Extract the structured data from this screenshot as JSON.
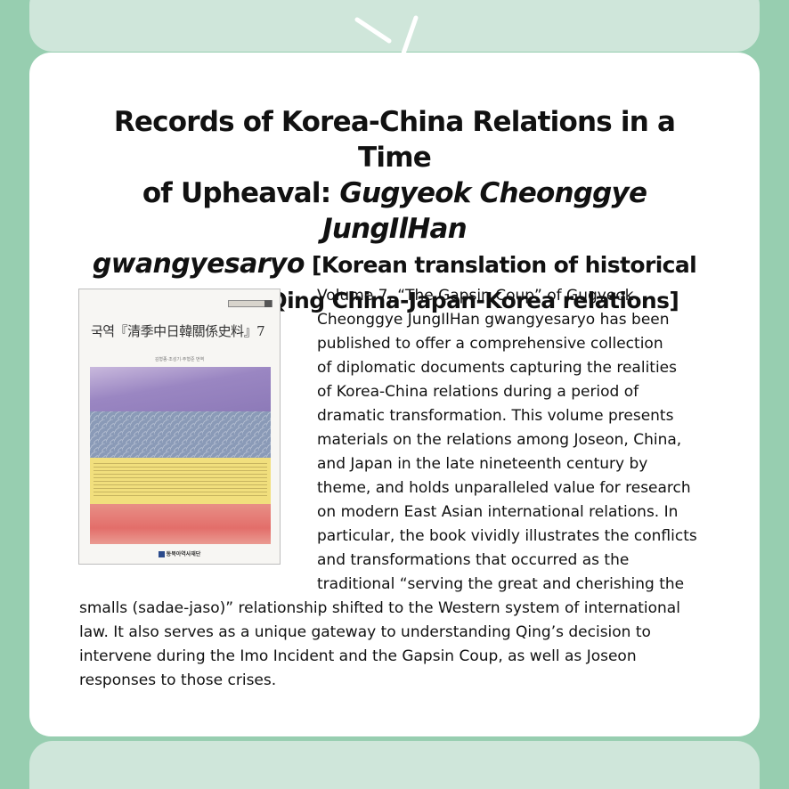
{
  "title": {
    "line1_plain": "Records of Korea-China Relations in a Time",
    "line2_plain": "of Upheaval: ",
    "line2_italic": "Gugyeok Cheonggye JungIlHan",
    "line3_italic": "gwangyesaryo",
    "line3_plain": " [Korean translation of historical",
    "line4_plain": "materials on Qing China-Japan-Korea relations]"
  },
  "cover": {
    "title_text": "국역『清季中日韓關係史料』7",
    "authors": "김형종·조성기·주형준 번역",
    "publisher": "동북아역사재단"
  },
  "body": {
    "lines": [
      "Volume 7, “The Gapsin Coup” of Gugyeok",
      "Cheonggye JungIlHan gwangyesaryo has been",
      "published to offer a comprehensive collection",
      "of diplomatic documents capturing the realities",
      "of Korea-China relations during a period of",
      "dramatic transformation. This volume presents",
      "materials on the relations among Joseon, China,",
      "and Japan in the late nineteenth century by",
      "theme, and holds unparalleled value for research",
      "on modern East Asian international relations. In",
      "particular, the book vividly illustrates the conflicts",
      "and transformations that occurred as the",
      "traditional “serving the great and cherishing the",
      "smalls (sadae-jaso)” relationship shifted to the Western system of international",
      "law. It also serves as a unique gateway to understanding Qing’s decision to",
      "intervene during the Imo Incident and the Gapsin Coup, as well as Joseon",
      "responses to those crises."
    ]
  },
  "colors": {
    "background": "#97ceb0",
    "panel": "#cfe6da",
    "card": "#ffffff",
    "text": "#111111"
  }
}
